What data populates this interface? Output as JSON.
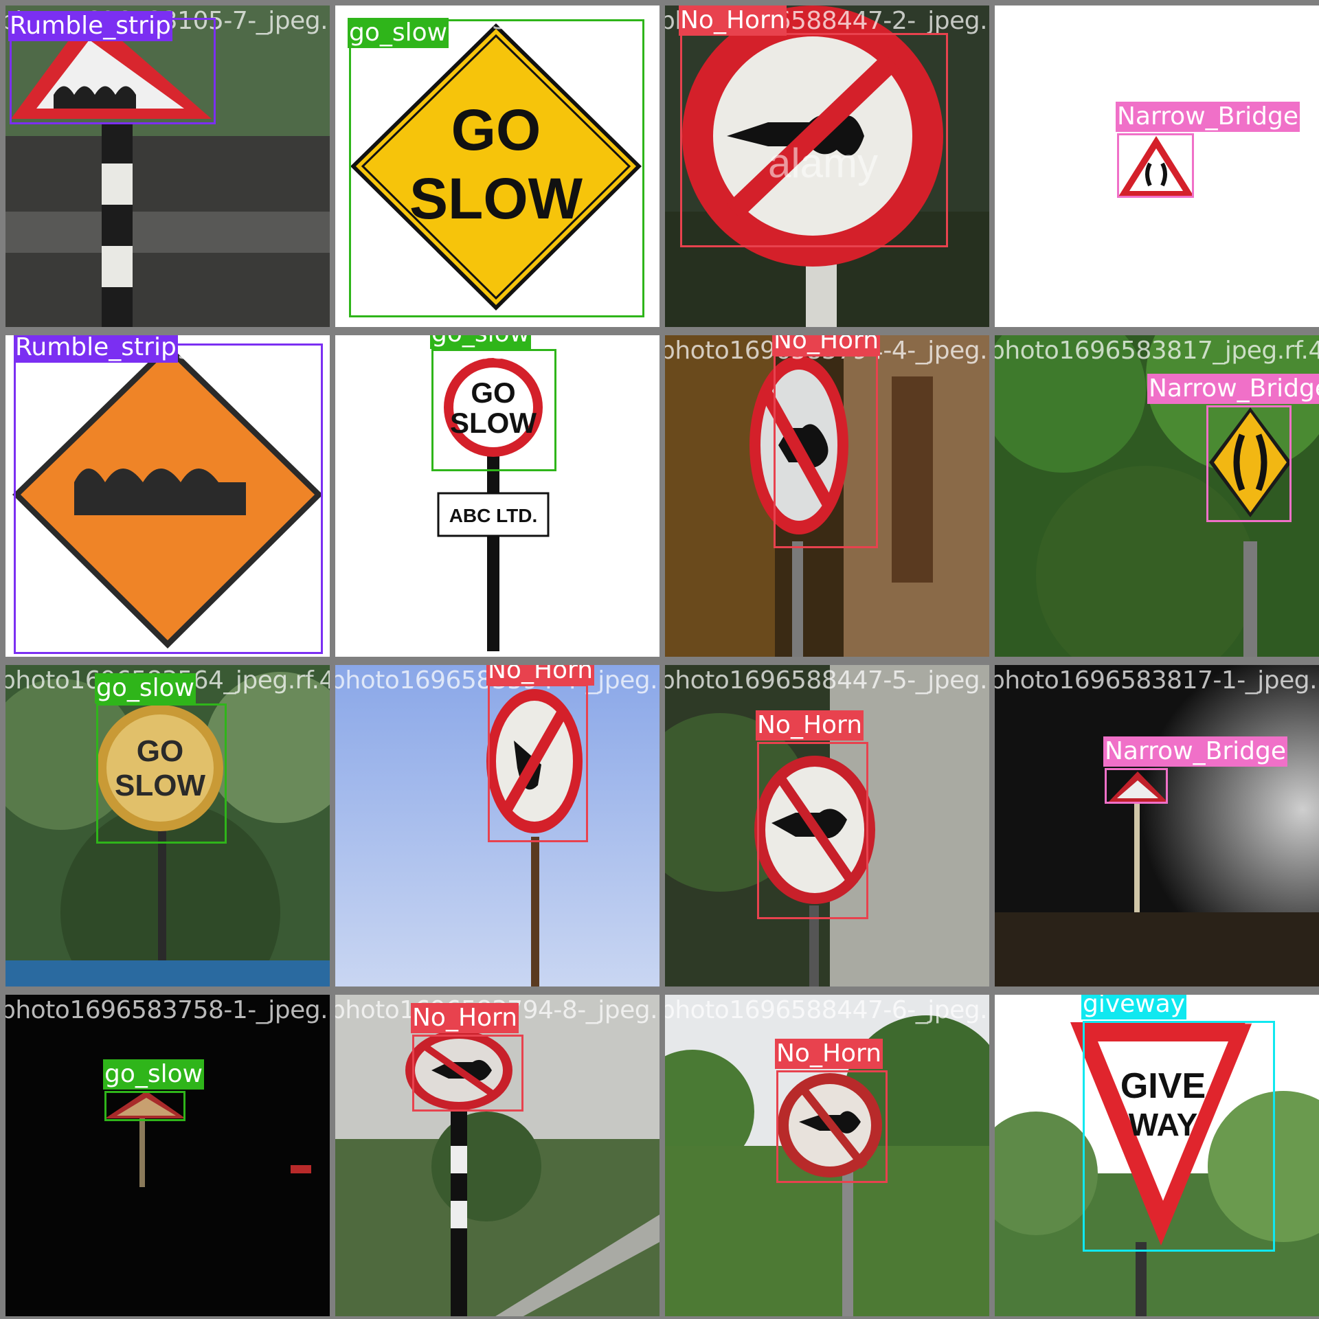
{
  "classes": {
    "rumble_strip": "Rumble_strip",
    "go_slow": "go_slow",
    "no_horn": "No_Horn",
    "narrow_bridge": "Narrow_Bridge",
    "giveway": "giveway"
  },
  "colors": {
    "rumble_strip": "#7b2ff2",
    "go_slow": "#2fb51a",
    "no_horn": "#e8424e",
    "narrow_bridge": "#f070c8",
    "giveway": "#10e8f0",
    "grid_background": "#7f7f7f"
  },
  "tiles": [
    {
      "filename": "photo1696583105-7-_jpeg.rf.",
      "label": "Rumble_strip"
    },
    {
      "filename": "photo1696583263_jpeg.rf.54",
      "label": "go_slow"
    },
    {
      "filename": "photo1696588447-2-_jpeg.rf.",
      "label": "No_Horn"
    },
    {
      "filename": "photo1696583692_jpeg.rf.de",
      "label": "Narrow_Bridge"
    },
    {
      "filename": "photo1696583368_jpeg.rf.38",
      "label": "Rumble_strip"
    },
    {
      "filename": "photo1696583718_jpeg.rf.33",
      "label": "go_slow"
    },
    {
      "filename": "photo1696583794-4-_jpeg.rf.",
      "label": "No_Horn"
    },
    {
      "filename": "photo1696583817_jpeg.rf.41",
      "label": "Narrow_Bridge"
    },
    {
      "filename": "photo1696583564_jpeg.rf.4c",
      "label": "go_slow"
    },
    {
      "filename": "photo1696583594-4-_jpeg.rf.",
      "label": "No_Horn"
    },
    {
      "filename": "photo1696588447-5-_jpeg.rf.",
      "label": "No_Horn"
    },
    {
      "filename": "photo1696583817-1-_jpeg.rf.",
      "label": "Narrow_Bridge"
    },
    {
      "filename": "photo1696583758-1-_jpeg.rf.",
      "label": "go_slow"
    },
    {
      "filename": "photo1696583794-8-_jpeg.rf.",
      "label": "No_Horn"
    },
    {
      "filename": "photo1696588447-6-_jpeg.rf.",
      "label": "No_Horn"
    },
    {
      "filename": "photo1696583672-6-_jpeg.rf.",
      "label": "giveway"
    }
  ],
  "sign_text": {
    "go": "GO",
    "slow": "SLOW",
    "abc": "ABC LTD.",
    "give": "GIVE",
    "way": "WAY",
    "watermark": "alamy"
  }
}
